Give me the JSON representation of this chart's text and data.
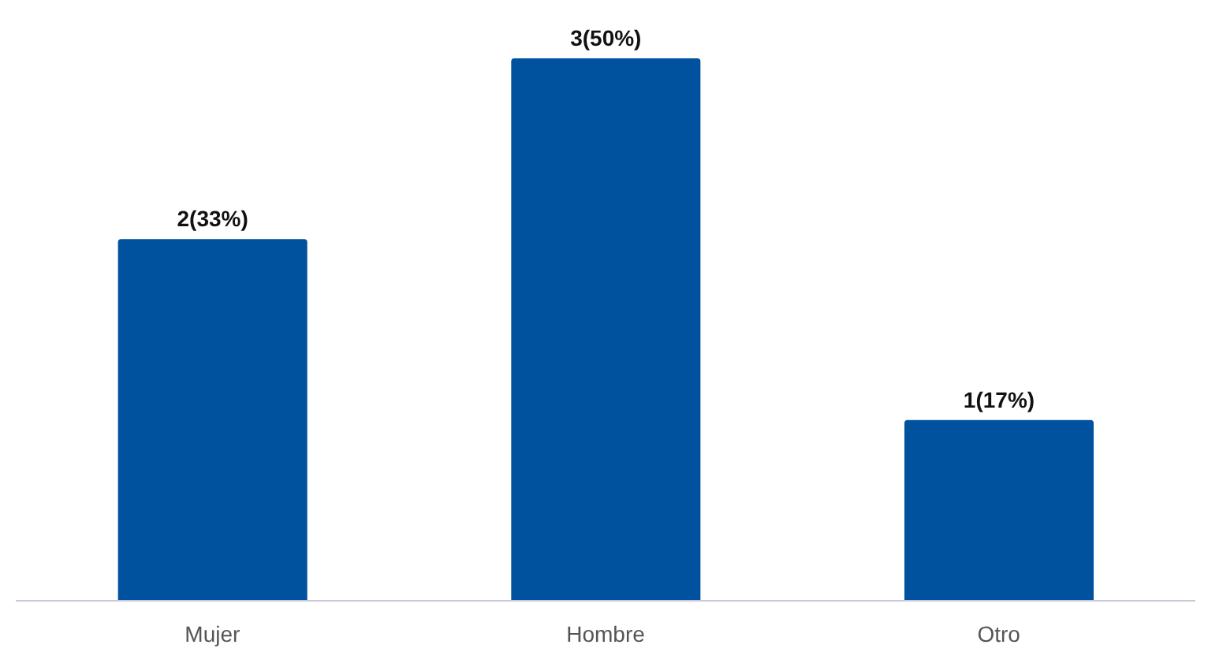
{
  "chart_data": {
    "type": "bar",
    "categories": [
      "Mujer",
      "Hombre",
      "Otro"
    ],
    "values": [
      2,
      3,
      1
    ],
    "color": "#00529f",
    "value_labels": [
      "2(33%)",
      "3(50%)",
      "1(17%)"
    ],
    "grid": false,
    "legend": false
  }
}
